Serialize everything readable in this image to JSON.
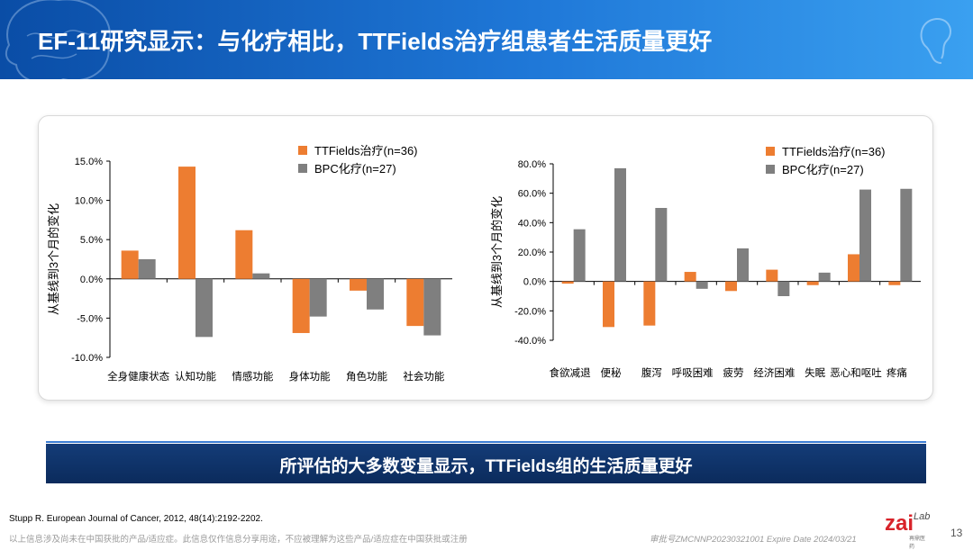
{
  "header": {
    "title": "EF-11研究显示：与化疗相比，TTFields治疗组患者生活质量更好"
  },
  "colors": {
    "ttfields": "#ED7D31",
    "bpc": "#7F7F7F",
    "header": "#1565c0",
    "banner": "#0b2b5c"
  },
  "chart_data": [
    {
      "type": "bar",
      "ylabel": "从基线到3个月的变化",
      "ylim": [
        -10,
        15
      ],
      "yticks": [
        "15.0%",
        "10.0%",
        "5.0%",
        "0.0%",
        "-5.0%",
        "-10.0%"
      ],
      "yticks_values": [
        15,
        10,
        5,
        0,
        -5,
        -10
      ],
      "categories": [
        "全身健康状态",
        "认知功能",
        "情感功能",
        "身体功能",
        "角色功能",
        "社会功能"
      ],
      "series": [
        {
          "name": "TTFields治疗(n=36)",
          "color": "#ED7D31",
          "values": [
            3.6,
            14.3,
            6.2,
            -6.9,
            -1.5,
            -6.0
          ]
        },
        {
          "name": "BPC化疗(n=27)",
          "color": "#7F7F7F",
          "values": [
            2.5,
            -7.4,
            0.7,
            -4.8,
            -3.9,
            -7.2
          ]
        }
      ],
      "legend_position": "top"
    },
    {
      "type": "bar",
      "ylabel": "从基线到3个月的变化",
      "ylim": [
        -40,
        80
      ],
      "yticks": [
        "80.0%",
        "60.0%",
        "40.0%",
        "20.0%",
        "0.0%",
        "-20.0%",
        "-40.0%"
      ],
      "yticks_values": [
        80,
        60,
        40,
        20,
        0,
        -20,
        -40
      ],
      "categories": [
        "食欲减退",
        "便秘",
        "腹泻",
        "呼吸困难",
        "疲劳",
        "经济困难",
        "失眠",
        "恶心和呕吐",
        "疼痛"
      ],
      "series": [
        {
          "name": "TTFields治疗(n=36)",
          "color": "#ED7D31",
          "values": [
            -1.5,
            -31,
            -30,
            6.5,
            -6.5,
            8,
            -2.5,
            18.5,
            -2.5
          ]
        },
        {
          "name": "BPC化疗(n=27)",
          "color": "#7F7F7F",
          "values": [
            35.5,
            77,
            50,
            -5,
            22.5,
            -10,
            6,
            62.5,
            63
          ]
        }
      ],
      "legend_position": "top-right"
    }
  ],
  "banner": {
    "text": "所评估的大多数变量显示，TTFields组的生活质量更好"
  },
  "reference": "Stupp R. European Journal of Cancer, 2012, 48(14):2192-2202.",
  "footer": {
    "disclaimer": "以上信息涉及尚未在中国获批的产品/适应症。此信息仅作信息分享用途，不应被理解为这些产品/适应症在中国获批或注册",
    "code": "审批号ZMCNNP20230321001 Expire Date 2024/03/21",
    "logo_main": "zai",
    "logo_lab": "Lab",
    "logo_sub": "再鼎医药",
    "page_number": "13"
  }
}
